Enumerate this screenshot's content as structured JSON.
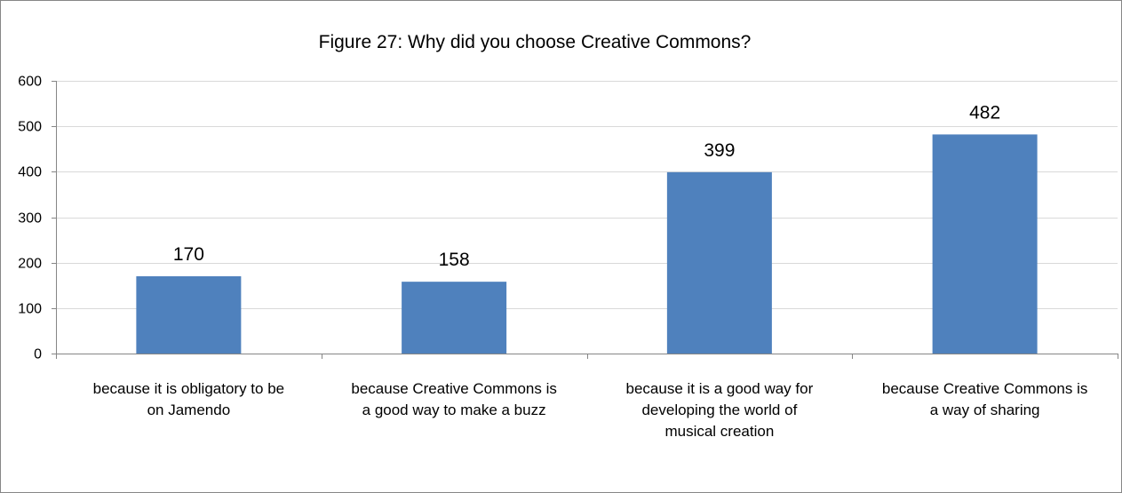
{
  "chart_data": {
    "type": "bar",
    "title": "Figure 27: Why did you choose Creative Commons?",
    "xlabel": "",
    "ylabel": "",
    "categories": [
      [
        "because it is obligatory to be",
        "on Jamendo"
      ],
      [
        "because Creative Commons is",
        "a good way to make a buzz"
      ],
      [
        "because it is a good way for",
        "developing the world of",
        "musical creation"
      ],
      [
        "because Creative Commons is",
        "a way of sharing"
      ]
    ],
    "values": [
      170,
      158,
      399,
      482
    ],
    "ylim": [
      0,
      600
    ],
    "yticks": [
      0,
      100,
      200,
      300,
      400,
      500,
      600
    ],
    "grid": true,
    "legend": "none",
    "colors": {
      "bar": "#4F81BD",
      "grid": "#D9D9D9",
      "axis": "#868686",
      "border": "#868686"
    }
  }
}
